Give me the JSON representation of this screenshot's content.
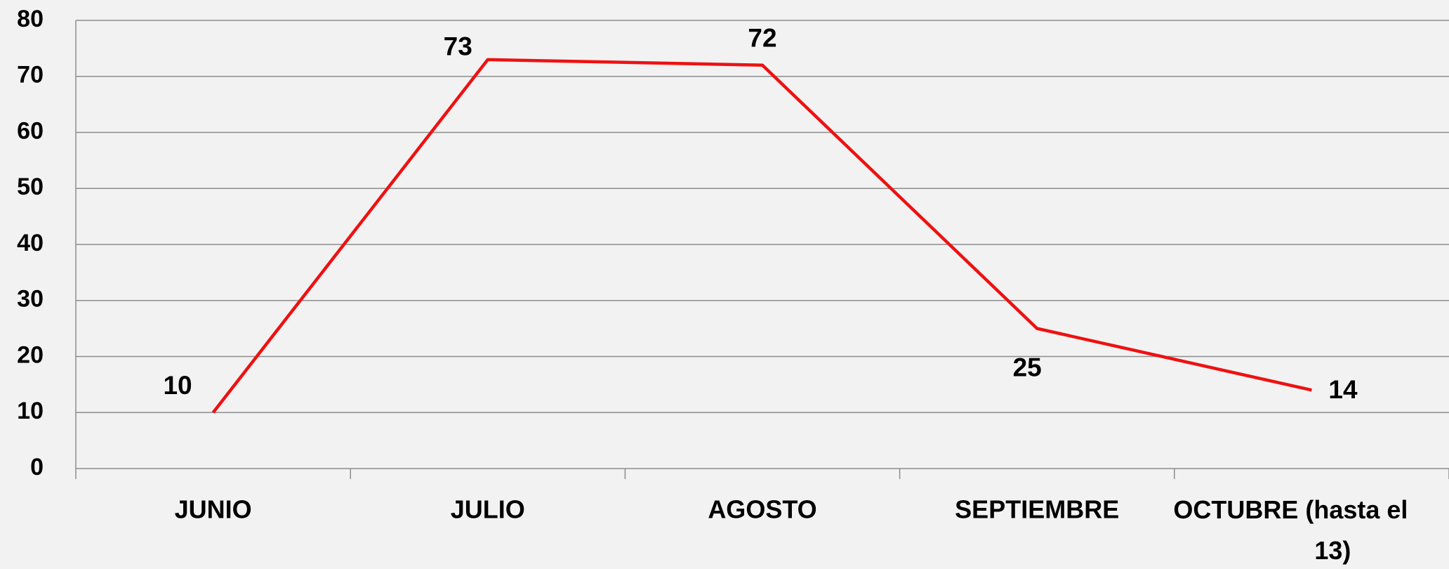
{
  "chart_data": {
    "type": "line",
    "categories": [
      "JUNIO",
      "JULIO",
      "AGOSTO",
      "SEPTIEMBRE",
      "OCTUBRE (hasta el 13)"
    ],
    "values": [
      10,
      73,
      72,
      25,
      14
    ],
    "color": "#ee1111",
    "ylim": [
      0,
      80
    ],
    "yticks": [
      0,
      10,
      20,
      30,
      40,
      50,
      60,
      70,
      80
    ],
    "grid": true
  }
}
